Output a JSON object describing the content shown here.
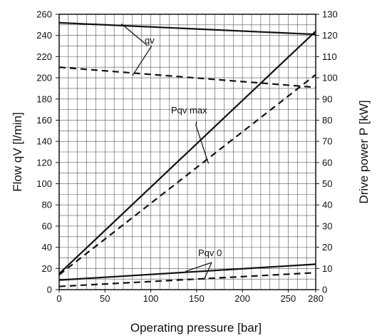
{
  "chart_data": {
    "type": "line",
    "xlabel": "Operating pressure  [bar]",
    "ylabel_left": "Flow qV [l/min]",
    "ylabel_right": "Drive power  P [kW]",
    "xlim": [
      0,
      280
    ],
    "ylim_left": [
      0,
      260
    ],
    "ylim_right": [
      0,
      130
    ],
    "x_ticks": [
      "0",
      "50",
      "100",
      "150",
      "200",
      "250",
      "280"
    ],
    "y_left_ticks": [
      "0",
      "20",
      "40",
      "60",
      "80",
      "100",
      "120",
      "140",
      "160",
      "180",
      "200",
      "220",
      "240",
      "260"
    ],
    "y_right_ticks": [
      "0",
      "10",
      "20",
      "30",
      "40",
      "50",
      "60",
      "70",
      "80",
      "90",
      "100",
      "110",
      "120",
      "130"
    ],
    "grid": true,
    "series": [
      {
        "name": "qv",
        "style": "solid",
        "axis": "left",
        "x": [
          0,
          280
        ],
        "y": [
          252,
          241
        ]
      },
      {
        "name": "qv",
        "style": "dashed",
        "axis": "left",
        "x": [
          0,
          280
        ],
        "y": [
          210,
          191
        ]
      },
      {
        "name": "Pqv max",
        "style": "solid",
        "axis": "right",
        "x": [
          0,
          280
        ],
        "y": [
          7.5,
          122
        ]
      },
      {
        "name": "Pqv max",
        "style": "dashed",
        "axis": "right",
        "x": [
          0,
          280
        ],
        "y": [
          7,
          101.5
        ]
      },
      {
        "name": "Pqv 0",
        "style": "solid",
        "axis": "right",
        "x": [
          0,
          280
        ],
        "y": [
          4.5,
          12
        ]
      },
      {
        "name": "Pqv 0",
        "style": "dashed",
        "axis": "right",
        "x": [
          0,
          280
        ],
        "y": [
          1.5,
          8
        ]
      }
    ],
    "annotations": [
      "qv",
      "Pqv max",
      "Pqv  0"
    ]
  }
}
